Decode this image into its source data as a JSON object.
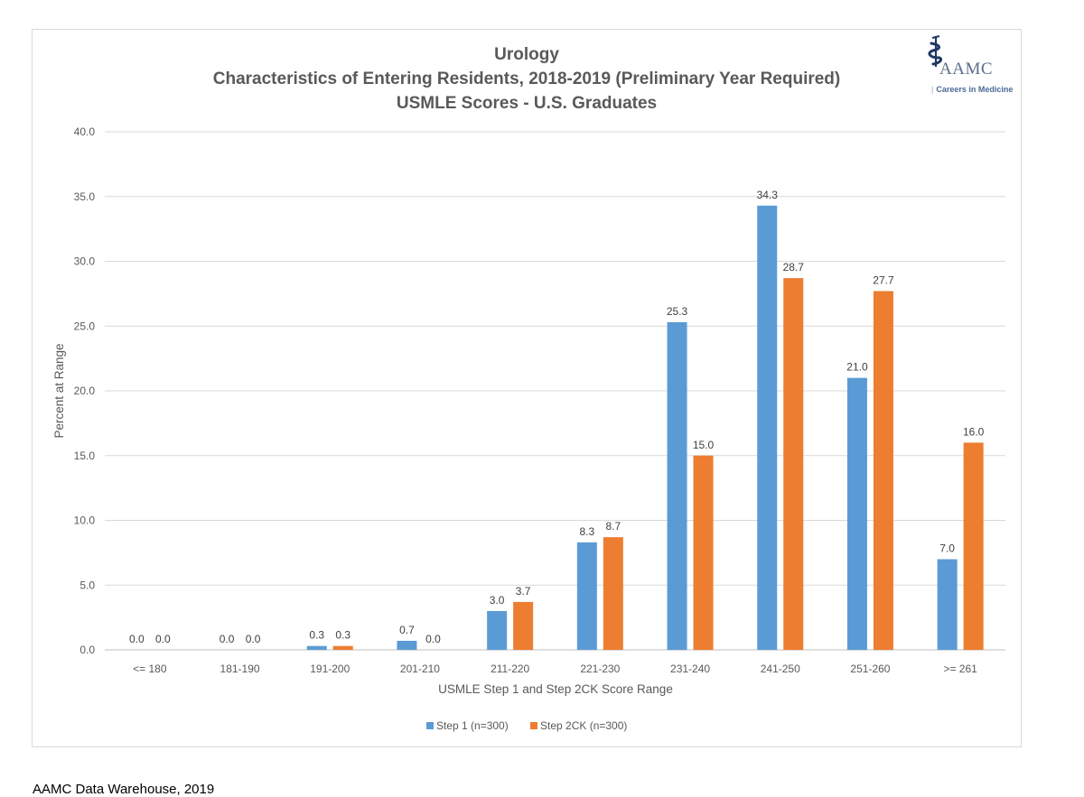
{
  "chart_data": {
    "type": "bar",
    "title": [
      "Urology",
      "Characteristics of Entering Residents, 2018-2019 (Preliminary Year Required)",
      "USMLE Scores - U.S. Graduates"
    ],
    "xlabel": "USMLE Step 1 and Step 2CK Score Range",
    "ylabel": "Percent at Range",
    "ylim": [
      0,
      40
    ],
    "yticks": [
      "0.0",
      "5.0",
      "10.0",
      "15.0",
      "20.0",
      "25.0",
      "30.0",
      "35.0",
      "40.0"
    ],
    "grid": true,
    "legend_position": "bottom",
    "categories": [
      "<= 180",
      "181-190",
      "191-200",
      "201-210",
      "211-220",
      "221-230",
      "231-240",
      "241-250",
      "251-260",
      ">= 261"
    ],
    "series": [
      {
        "name": "Step 1 (n=300)",
        "color": "#5b9bd5",
        "values": [
          0.0,
          0.0,
          0.3,
          0.7,
          3.0,
          8.3,
          25.3,
          34.3,
          21.0,
          7.0
        ],
        "labels": [
          "0.0",
          "0.0",
          "0.3",
          "0.7",
          "3.0",
          "8.3",
          "25.3",
          "34.3",
          "21.0",
          "7.0"
        ]
      },
      {
        "name": "Step 2CK (n=300)",
        "color": "#ed7d31",
        "values": [
          0.0,
          0.0,
          0.3,
          0.0,
          3.7,
          8.7,
          15.0,
          28.7,
          27.7,
          16.0
        ],
        "labels": [
          "0.0",
          "0.0",
          "0.3",
          "0.0",
          "3.7",
          "8.7",
          "15.0",
          "28.7",
          "27.7",
          "16.0"
        ]
      }
    ]
  },
  "logo": {
    "icon": "caduceus-icon",
    "name": "AAMC",
    "tagline": "Careers in Medicine",
    "color": "#1f3864"
  },
  "source_note": "AAMC Data Warehouse, 2019"
}
